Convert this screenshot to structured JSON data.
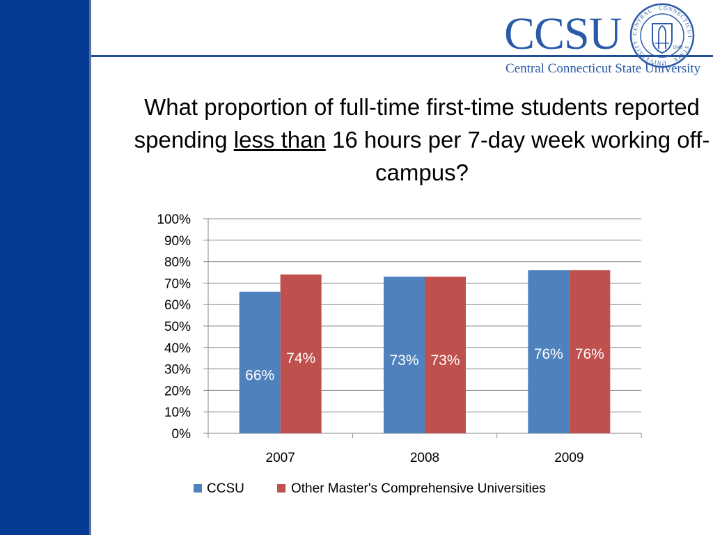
{
  "header": {
    "logo_text": "CCSU",
    "logo_subtitle": "Central Connecticut State University",
    "seal_ring_text": "CENTRAL · CONNECTICUT · STATE · UNIVERSITY",
    "seal_year": "1849"
  },
  "question": {
    "part1": "What proportion of full-time first-time students reported spending ",
    "underlined": "less than",
    "part2": " 16 hours per 7-day week working off-campus?"
  },
  "chart_data": {
    "type": "bar",
    "categories": [
      "2007",
      "2008",
      "2009"
    ],
    "series": [
      {
        "name": "CCSU",
        "values": [
          66,
          73,
          76
        ],
        "labels": [
          "66%",
          "73%",
          "76%"
        ],
        "color": "#4f81bd"
      },
      {
        "name": "Other Master's Comprehensive Universities",
        "values": [
          74,
          73,
          76
        ],
        "labels": [
          "74%",
          "73%",
          "76%"
        ],
        "color": "#c0504d"
      }
    ],
    "ylim": [
      0,
      100
    ],
    "yticks": [
      0,
      10,
      20,
      30,
      40,
      50,
      60,
      70,
      80,
      90,
      100
    ],
    "ytick_labels": [
      "0%",
      "10%",
      "20%",
      "30%",
      "40%",
      "50%",
      "60%",
      "70%",
      "80%",
      "90%",
      "100%"
    ],
    "grid": true,
    "legend": "bottom",
    "title": "",
    "xlabel": "",
    "ylabel": ""
  },
  "colors": {
    "sidebar": "#073a93",
    "brand": "#2a5ba8",
    "gridline": "#878787"
  }
}
